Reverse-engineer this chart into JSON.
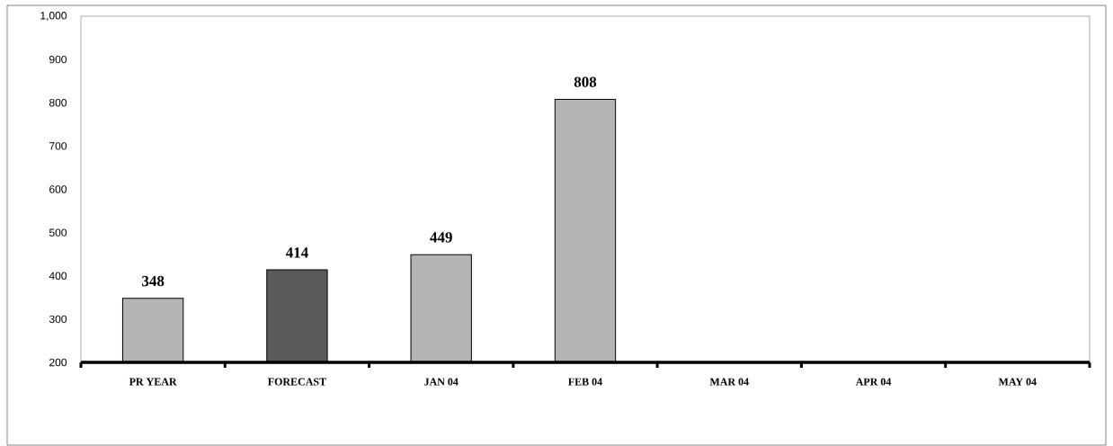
{
  "chart_data": {
    "type": "bar",
    "categories": [
      "PR YEAR",
      "FORECAST",
      "JAN 04",
      "FEB 04",
      "MAR 04",
      "APR 04",
      "MAY 04"
    ],
    "values": [
      348,
      414,
      449,
      808,
      null,
      null,
      null
    ],
    "colors": [
      "#b4b4b4",
      "#5a5a5a",
      "#b4b4b4",
      "#b4b4b4",
      "#b4b4b4",
      "#b4b4b4",
      "#b4b4b4"
    ],
    "value_labels": [
      "348",
      "414",
      "449",
      "808",
      null,
      null,
      null
    ],
    "ylim": [
      200,
      1000
    ],
    "yticks": [
      200,
      300,
      400,
      500,
      600,
      700,
      800,
      900,
      {
        "value": 1000,
        "label": "1,000"
      }
    ],
    "grid": false
  }
}
